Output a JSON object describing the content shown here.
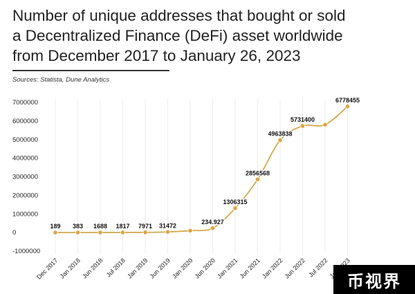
{
  "title_lines": [
    "Number of unique addresses that bought or sold",
    "a Decentralized Finance (DeFi) asset worldwide",
    "from December 2017 to January 26, 2023"
  ],
  "source": "Sources: Statista, Dune Analytics",
  "watermark": "币视界",
  "colors": {
    "line": "#d4a84b",
    "marker": "#d9a441",
    "grid": "#ececec",
    "text": "#222222"
  },
  "chart_data": {
    "type": "line",
    "title": "Number of unique addresses that bought or sold a Decentralized Finance (DeFi) asset worldwide from December 2017 to January 26, 2023",
    "xlabel": "",
    "ylabel": "",
    "categories": [
      "Dec 2017",
      "Jan 2018",
      "Jun 2018",
      "Jul 2018",
      "Jan 2019",
      "Jun 2019",
      "Jan 2020",
      "Jun 2020",
      "Jan 2021",
      "Jun 2021",
      "Jan 2022",
      "Jun 2022",
      "Jul 2022",
      "Jan 2023"
    ],
    "series": [
      {
        "values": [
          189,
          383,
          1688,
          1817,
          7971,
          31472,
          100000,
          234927,
          1306315,
          2856568,
          4963838,
          5731400,
          5800000,
          6778455
        ]
      }
    ],
    "data_labels": [
      "189",
      "383",
      "1688",
      "1817",
      "7971",
      "31472",
      "",
      "234.927",
      "1306315",
      "2856568",
      "4963838",
      "5731400",
      "",
      "6778455"
    ],
    "y_ticks": [
      7000000,
      6000000,
      5000000,
      4000000,
      3000000,
      2000000,
      1000000,
      0,
      -1000000
    ],
    "y_tick_labels": [
      "7000000",
      "6000000",
      "5000000",
      "4000000",
      "3000000",
      "2000000",
      "1000000",
      "0",
      "-1000000"
    ],
    "ylim": [
      -1000000,
      7000000
    ],
    "grid": true,
    "grid_axis": "x",
    "legend": "none"
  }
}
